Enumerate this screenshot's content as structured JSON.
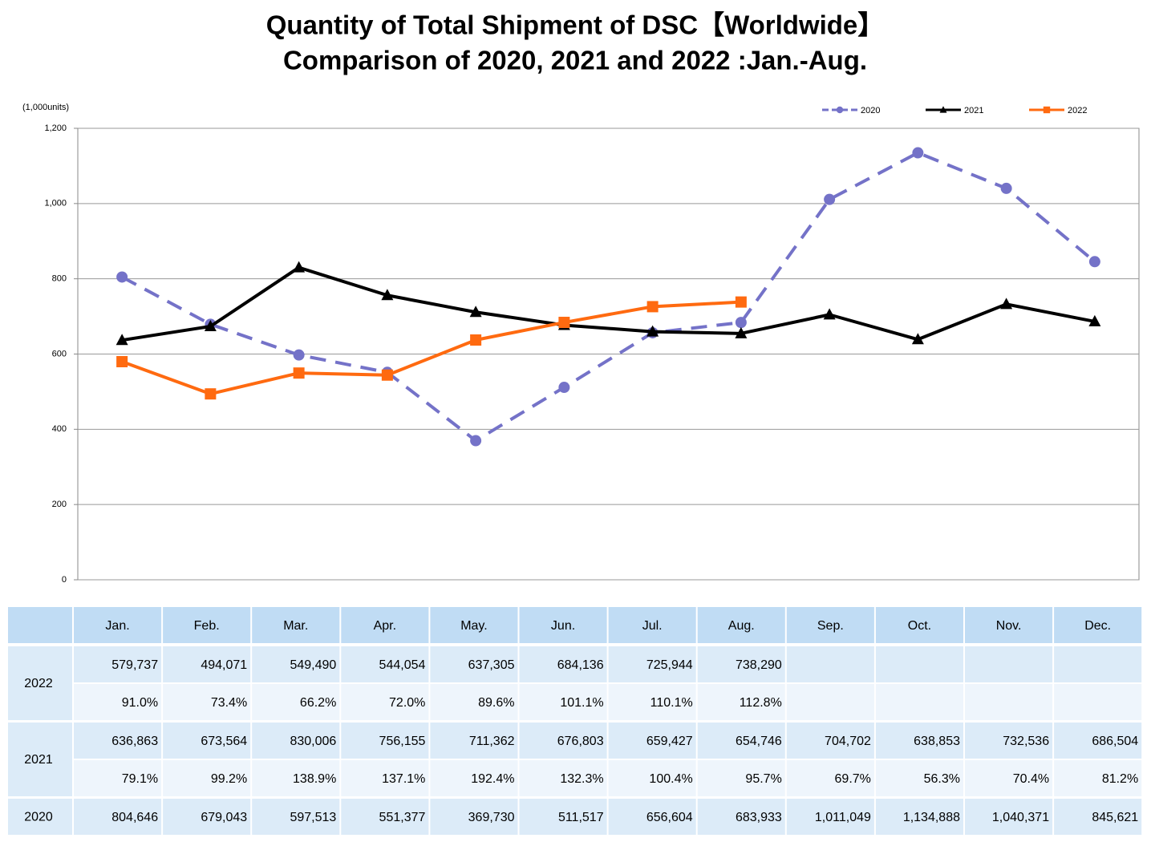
{
  "chart_data": {
    "type": "line",
    "title": "Quantity of Total Shipment of DSC【Worldwide】",
    "subtitle": "Comparison of 2020, 2021 and 2022 :Jan.-Aug.",
    "y_label": "(1,000units)",
    "categories": [
      "Jan.",
      "Feb.",
      "Mar.",
      "Apr.",
      "May.",
      "Jun.",
      "Jul.",
      "Aug.",
      "Sep.",
      "Oct.",
      "Nov.",
      "Dec."
    ],
    "series": [
      {
        "name": "2020",
        "color": "#7472c8",
        "line_style": "dashed",
        "marker": "circle",
        "values": [
          804.646,
          679.043,
          597.513,
          551.377,
          369.73,
          511.517,
          656.604,
          683.933,
          1011.049,
          1134.888,
          1040.371,
          845.621
        ]
      },
      {
        "name": "2021",
        "color": "#000000",
        "line_style": "solid",
        "marker": "triangle",
        "values": [
          636.863,
          673.564,
          830.006,
          756.155,
          711.362,
          676.803,
          659.427,
          654.746,
          704.702,
          638.853,
          732.536,
          686.504
        ]
      },
      {
        "name": "2022",
        "color": "#ff6a10",
        "line_style": "solid",
        "marker": "square",
        "values": [
          579.737,
          494.071,
          549.49,
          544.054,
          637.305,
          684.136,
          725.944,
          738.29,
          null,
          null,
          null,
          null
        ]
      }
    ],
    "ylim": [
      0,
      1200
    ],
    "yticks": [
      0,
      200,
      400,
      600,
      800,
      {
        "value": 1000,
        "label": "1,000"
      },
      {
        "value": 1200,
        "label": "1,200"
      }
    ],
    "grid": true,
    "legend": "top-right"
  },
  "table": {
    "rows": [
      {
        "year": "2022",
        "values": [
          "579,737",
          "494,071",
          "549,490",
          "544,054",
          "637,305",
          "684,136",
          "725,944",
          "738,290"
        ],
        "ratios": [
          "91.0%",
          "73.4%",
          "66.2%",
          "72.0%",
          "89.6%",
          "101.1%",
          "110.1%",
          "112.8%"
        ]
      },
      {
        "year": "2021",
        "values": [
          "636,863",
          "673,564",
          "830,006",
          "756,155",
          "711,362",
          "676,803",
          "659,427",
          "654,746",
          "704,702",
          "638,853",
          "732,536",
          "686,504"
        ],
        "ratios": [
          "79.1%",
          "99.2%",
          "138.9%",
          "137.1%",
          "192.4%",
          "132.3%",
          "100.4%",
          "95.7%",
          "69.7%",
          "56.3%",
          "70.4%",
          "81.2%"
        ]
      },
      {
        "year": "2020",
        "values": [
          "804,646",
          "679,043",
          "597,513",
          "551,377",
          "369,730",
          "511,517",
          "656,604",
          "683,933",
          "1,011,049",
          "1,134,888",
          "1,040,371",
          "845,621"
        ]
      }
    ]
  }
}
